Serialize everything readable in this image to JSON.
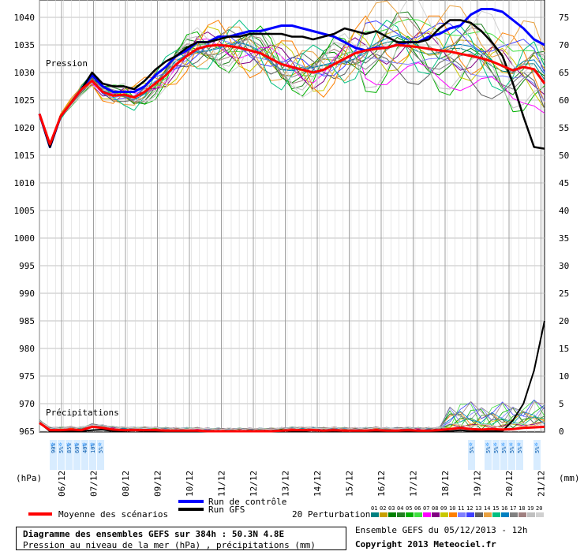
{
  "chart_data": {
    "type": "line",
    "x_tick_labels": [
      "06/12",
      "07/12",
      "08/12",
      "09/12",
      "10/12",
      "11/12",
      "12/12",
      "13/12",
      "14/12",
      "15/12",
      "16/12",
      "17/12",
      "18/12",
      "19/12",
      "20/12",
      "21/12"
    ],
    "y_left_ticks": [
      1040,
      1035,
      1030,
      1025,
      1020,
      1015,
      1010,
      1005,
      1000,
      995,
      990,
      985,
      980,
      975,
      970,
      965
    ],
    "y_right_ticks": [
      75,
      70,
      65,
      60,
      55,
      50,
      45,
      40,
      35,
      30,
      25,
      20,
      15,
      10,
      5,
      0
    ],
    "ylim_pressure": [
      965,
      1040
    ],
    "ylim_precip": [
      0,
      75
    ],
    "unit_left": "(hPa)",
    "unit_right": "(mm)",
    "label_pressure": "Pression",
    "label_precip": "Précipitations",
    "snow_labels_early": [
      "90%",
      "5%",
      "85%",
      "60%",
      "40%",
      "10%",
      "5%"
    ],
    "snow_labels_late": [
      "5%",
      "5%",
      "5%",
      "5%",
      "5%",
      "5%",
      "5%"
    ],
    "legend": {
      "mean": "Moyenne des scénarios",
      "control": "Run de contrôle",
      "gfs": "Run GFS",
      "perturbations": "20 Perturbations",
      "perturbation_ids": [
        "01",
        "02",
        "03",
        "04",
        "05",
        "06",
        "07",
        "08",
        "09",
        "10",
        "11",
        "12",
        "13",
        "14",
        "15",
        "16",
        "17",
        "18",
        "19",
        "20"
      ]
    },
    "colors": {
      "mean": "#ff0000",
      "control": "#0000ff",
      "gfs": "#000000",
      "perturbations": [
        "#008080",
        "#c8a000",
        "#008000",
        "#208020",
        "#00b000",
        "#40e040",
        "#ff00ff",
        "#800080",
        "#c8c800",
        "#ff8000",
        "#8080ff",
        "#4040ff",
        "#606060",
        "#e8a040",
        "#00c080",
        "#0080c0",
        "#808080",
        "#a08080",
        "#c0c0c0",
        "#d0d0d0"
      ]
    },
    "series": [
      {
        "name": "Moyenne des scénarios",
        "pressure": [
          1022.5,
          1017,
          1022,
          1024.5,
          1027,
          1028.5,
          1026.5,
          1025.8,
          1026.0,
          1025.5,
          1026.5,
          1028,
          1029.5,
          1031.5,
          1033,
          1034.3,
          1034.8,
          1035,
          1034.8,
          1034.5,
          1034,
          1033.5,
          1032.5,
          1031.5,
          1031,
          1030.5,
          1030,
          1030.5,
          1031.5,
          1032.5,
          1033.5,
          1034,
          1034.3,
          1034.5,
          1035,
          1034.8,
          1034.6,
          1034.3,
          1034,
          1033.8,
          1033.4,
          1033,
          1032.6,
          1032,
          1031.2,
          1030.4,
          1031,
          1030.6,
          1028
        ]
      },
      {
        "name": "Run de contrôle",
        "pressure": [
          1022.5,
          1016.5,
          1022,
          1024.5,
          1027,
          1029.5,
          1027.5,
          1026.5,
          1026.5,
          1026.5,
          1027.5,
          1029.5,
          1031,
          1033,
          1034,
          1035.5,
          1035.5,
          1036.5,
          1036.5,
          1037,
          1037.5,
          1037.5,
          1038,
          1038.5,
          1038.5,
          1038,
          1037.5,
          1037,
          1036.5,
          1035.5,
          1034.5,
          1034,
          1034.5,
          1034.5,
          1035,
          1035.5,
          1035.5,
          1036.5,
          1037,
          1038,
          1038.5,
          1040.5,
          1041.5,
          1041.5,
          1041,
          1039.5,
          1038,
          1036,
          1035
        ]
      },
      {
        "name": "Run GFS",
        "pressure": [
          1022.5,
          1016.5,
          1022,
          1024.5,
          1027,
          1030,
          1028,
          1027.5,
          1027.5,
          1027,
          1028.5,
          1030.5,
          1032,
          1033,
          1034.5,
          1035.5,
          1035.5,
          1036,
          1036.5,
          1036.5,
          1037,
          1037,
          1037,
          1037,
          1036.5,
          1036.5,
          1036,
          1036.5,
          1037,
          1038,
          1037.5,
          1037,
          1037.5,
          1036.5,
          1035.5,
          1035.5,
          1035.5,
          1036,
          1038,
          1039.5,
          1039.5,
          1039,
          1037.5,
          1035.5,
          1033,
          1028,
          1022,
          1016.5,
          1016.2
        ]
      }
    ],
    "gfs_precip": [
      1.5,
      0,
      0,
      0,
      0,
      0.2,
      0.3,
      0,
      0,
      0.2,
      0,
      0,
      0,
      0,
      0,
      0,
      0,
      0,
      0,
      0,
      0,
      0,
      0,
      0.2,
      0,
      0,
      0.2,
      0,
      0,
      0.2,
      0,
      0,
      0,
      0,
      0,
      0,
      0,
      0,
      0,
      0,
      0.2,
      0,
      0,
      0,
      0,
      2,
      5,
      11,
      20
    ],
    "mean_precip": [
      1.5,
      0.2,
      0.2,
      0.3,
      0.2,
      0.8,
      0.6,
      0.3,
      0.2,
      0.2,
      0.2,
      0.2,
      0.1,
      0.1,
      0.1,
      0.1,
      0,
      0,
      0,
      0,
      0,
      0,
      0,
      0.1,
      0.2,
      0.2,
      0.2,
      0.1,
      0.2,
      0.1,
      0.1,
      0.1,
      0.2,
      0.1,
      0.1,
      0.2,
      0.1,
      0.1,
      0.2,
      0.4,
      0.6,
      0.4,
      0.3,
      0.4,
      0.3,
      0.4,
      0.6,
      0.7,
      0.8
    ]
  },
  "footer": {
    "title": "Diagramme des ensembles GEFS sur 384h : 50.3N 4.8E",
    "subtitle": "Pression au niveau de la mer (hPa) , précipitations (mm)",
    "ensemble_run": "Ensemble GEFS du 05/12/2013 - 12h",
    "copyright": "Copyright 2013 Meteociel.fr"
  }
}
